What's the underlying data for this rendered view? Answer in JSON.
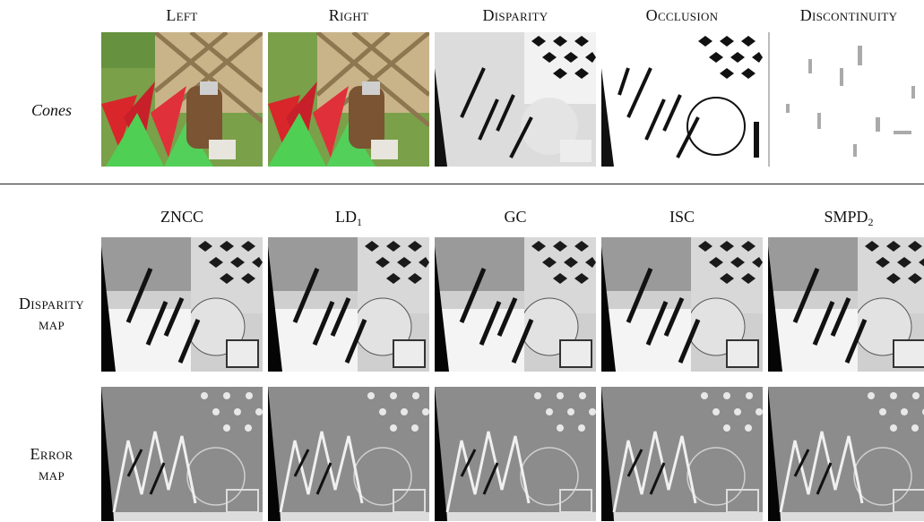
{
  "top_row": {
    "scene_label": "Cones",
    "columns": [
      "Left",
      "Right",
      "Disparity",
      "Occlusion",
      "Discontinuity"
    ]
  },
  "methods": [
    {
      "name": "ZNCC",
      "sub": ""
    },
    {
      "name": "LD",
      "sub": "1"
    },
    {
      "name": "GC",
      "sub": ""
    },
    {
      "name": "ISC",
      "sub": ""
    },
    {
      "name": "SMPD",
      "sub": "2"
    }
  ],
  "row_labels": {
    "disparity_map": [
      "Disparity",
      "map"
    ],
    "error_map": [
      "Error",
      "map"
    ]
  }
}
